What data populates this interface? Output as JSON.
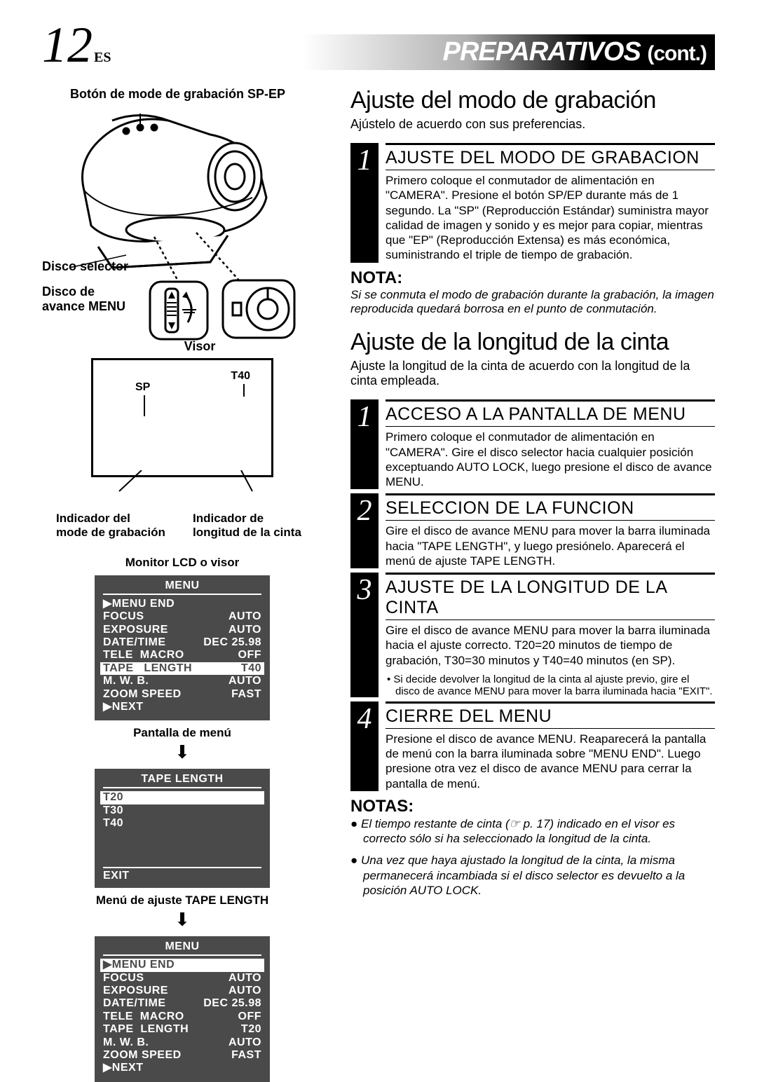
{
  "page": {
    "number": "12",
    "lang": "ES"
  },
  "chapter": {
    "title": "PREPARATIVOS",
    "cont": "(cont.)"
  },
  "callouts": {
    "top": "Botón de mode de grabación SP-EP",
    "disco_selector": "Disco selector",
    "disco_menu": "Disco de\navance MENU"
  },
  "visor": {
    "label": "Visor",
    "sp": "SP",
    "t40": "T40",
    "ind_mode": "Indicador del\nmode de grabación",
    "ind_length": "Indicador de\nlongitud de la cinta",
    "lcd_label": "Monitor LCD o visor"
  },
  "menu1": {
    "title": "MENU",
    "rows": [
      {
        "k": "▶MENU END",
        "v": ""
      },
      {
        "k": "FOCUS",
        "v": "AUTO"
      },
      {
        "k": "EXPOSURE",
        "v": "AUTO"
      },
      {
        "k": "DATE/TIME",
        "v": "DEC 25.98"
      },
      {
        "k": "TELE  MACRO",
        "v": "OFF"
      },
      {
        "k": "TAPE   LENGTH",
        "v": "T40",
        "hl": true
      },
      {
        "k": "M. W. B.",
        "v": "AUTO"
      },
      {
        "k": "ZOOM SPEED",
        "v": "FAST"
      },
      {
        "k": "▶NEXT",
        "v": ""
      }
    ],
    "caption": "Pantalla de menú"
  },
  "tape_menu": {
    "title": "TAPE  LENGTH",
    "opts": [
      "T20",
      "T30",
      "T40"
    ],
    "hl": 0,
    "exit": "EXIT",
    "caption": "Menú de ajuste TAPE LENGTH"
  },
  "menu2": {
    "title": "MENU",
    "rows": [
      {
        "k": "▶MENU END",
        "v": "",
        "hl": true
      },
      {
        "k": "FOCUS",
        "v": "AUTO"
      },
      {
        "k": "EXPOSURE",
        "v": "AUTO"
      },
      {
        "k": "DATE/TIME",
        "v": "DEC 25.98"
      },
      {
        "k": "TELE  MACRO",
        "v": "OFF"
      },
      {
        "k": "TAPE  LENGTH",
        "v": "T20"
      },
      {
        "k": "M. W. B.",
        "v": "AUTO"
      },
      {
        "k": "ZOOM SPEED",
        "v": "FAST"
      },
      {
        "k": "▶NEXT",
        "v": ""
      }
    ]
  },
  "sec1": {
    "title": "Ajuste del modo de grabación",
    "intro": "Ajústelo de acuerdo con sus preferencias.",
    "step1_h": "AJUSTE DEL MODO DE GRABACION",
    "step1_t": "Primero coloque el conmutador de alimentación en \"CAMERA\". Presione el botón SP/EP durante más de 1 segundo. La \"SP\" (Reproducción Estándar) suministra mayor calidad de imagen y  sonido y es mejor para copiar, mientras que \"EP\" (Reproducción Extensa) es más económica, suministrando el triple de tiempo de grabación.",
    "nota_h": "NOTA:",
    "nota_t": "Si se conmuta el modo de grabación durante la grabación, la imagen reproducida quedará borrosa en el punto de conmutación."
  },
  "sec2": {
    "title": "Ajuste de la longitud de la cinta",
    "intro": "Ajuste la longitud de la cinta de acuerdo con la longitud de la cinta empleada.",
    "s1_h": "ACCESO A LA PANTALLA DE MENU",
    "s1_t": "Primero coloque el conmutador de alimentación en \"CAMERA\". Gire el disco  selector hacia cualquier posición exceptuando AUTO LOCK, luego presione el disco de avance MENU.",
    "s2_h": "SELECCION DE LA FUNCION",
    "s2_t": "Gire el disco de avance MENU para mover la barra iluminada hacia \"TAPE LENGTH\", y luego presiónelo. Aparecerá el menú de ajuste TAPE LENGTH.",
    "s3_h": "AJUSTE DE LA LONGITUD DE LA CINTA",
    "s3_t": "Gire el disco de avance MENU para mover la barra iluminada hacia el ajuste correcto. T20=20 minutos de tiempo de grabación, T30=30 minutos y T40=40 minutos (en SP).",
    "s3_sub": "• Si decide devolver la longitud de la cinta al ajuste previo, gire el disco de avance MENU para mover la barra iluminada hacia \"EXIT\".",
    "s4_h": "CIERRE DEL MENU",
    "s4_t": "Presione el disco de avance MENU. Reaparecerá la pantalla de menú con la barra iluminada sobre \"MENU END\". Luego presione otra vez el disco de avance MENU para cerrar la pantalla de menú.",
    "notas_h": "NOTAS:",
    "notas": [
      "El tiempo restante de cinta (☞ p. 17) indicado en el visor es correcto sólo si ha seleccionado la longitud de la cinta.",
      "Una vez que haya ajustado la longitud de la cinta, la misma permanecerá incambiada si el disco selector es devuelto a la posición AUTO LOCK."
    ]
  }
}
